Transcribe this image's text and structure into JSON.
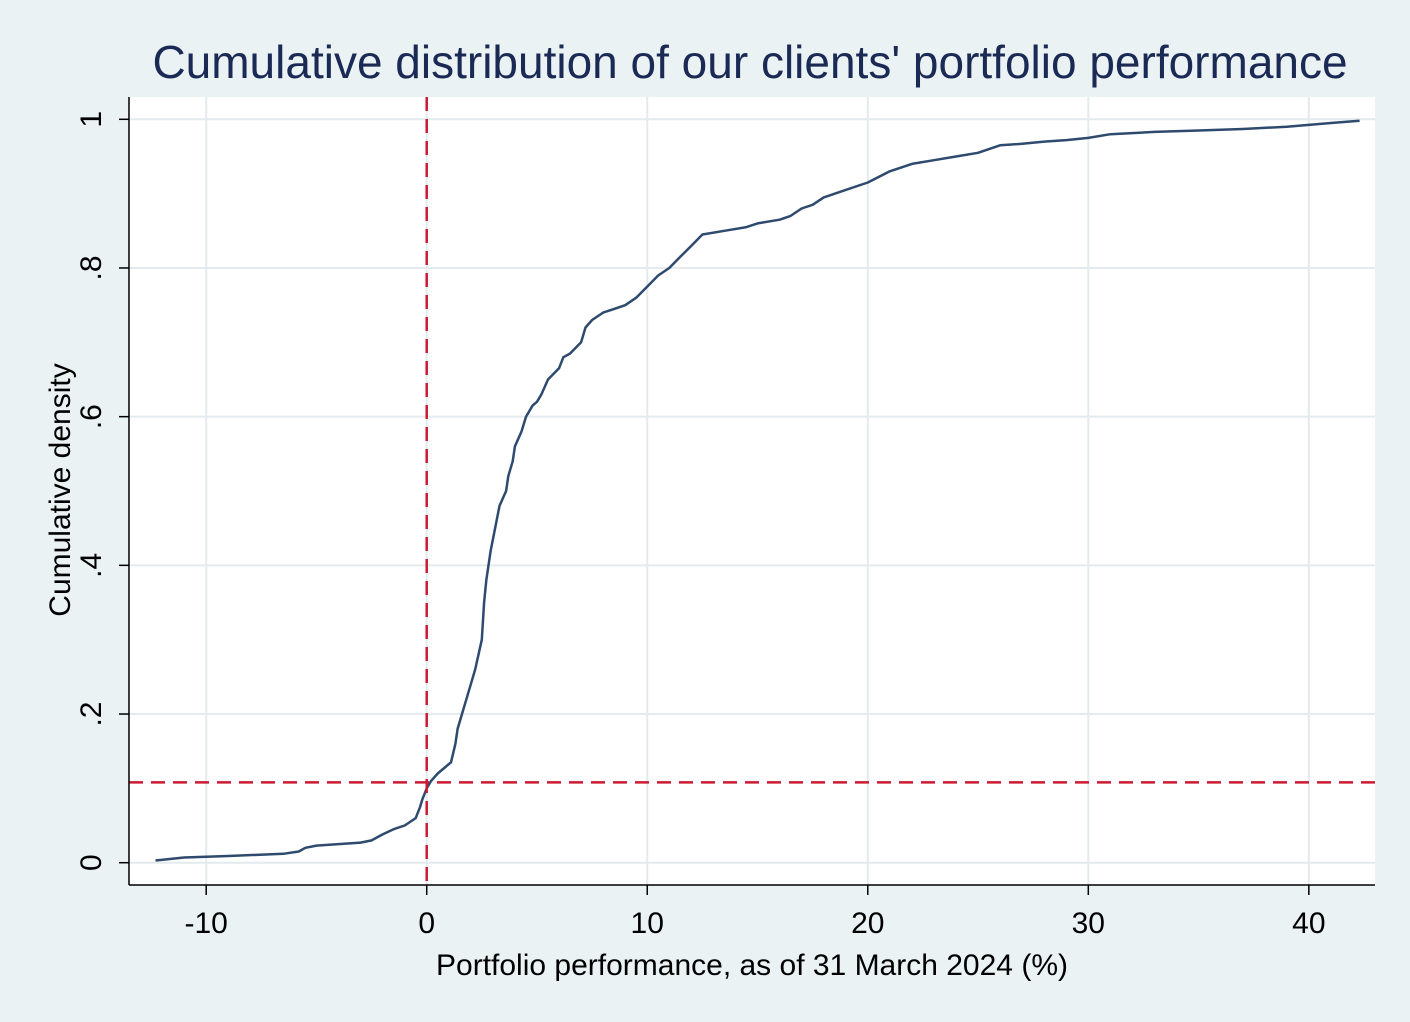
{
  "chart_data": {
    "type": "line",
    "title": "Cumulative distribution of our clients' portfolio performance",
    "xlabel": "Portfolio performance, as of 31 March 2024 (%)",
    "ylabel": "Cumulative density",
    "xlim": [
      -13.5,
      43
    ],
    "ylim": [
      -0.03,
      1.03
    ],
    "x_ticks": [
      -10,
      0,
      10,
      20,
      30,
      40
    ],
    "x_tick_labels": [
      "-10",
      "0",
      "10",
      "20",
      "30",
      "40"
    ],
    "y_ticks": [
      0,
      0.2,
      0.4,
      0.6,
      0.8,
      1
    ],
    "y_tick_labels": [
      "0",
      ".2",
      ".4",
      ".6",
      ".8",
      "1"
    ],
    "grid": true,
    "colors": {
      "series": "#2e4a6e",
      "reference": "#cc1a33",
      "grid": "#e3ebee",
      "title": "#1a2a55"
    },
    "reference_lines": [
      {
        "orientation": "vertical",
        "x": 0,
        "style": "dashed"
      },
      {
        "orientation": "horizontal",
        "y": 0.108,
        "style": "dashed"
      }
    ],
    "series": [
      {
        "x": [
          -12.3,
          -11,
          -9,
          -6.5,
          -5.8,
          -5.5,
          -5,
          -3,
          -2.5,
          -2,
          -1.5,
          -1,
          -0.5,
          -0.3,
          -0.2,
          0,
          0.2,
          0.5,
          1.1,
          1.3,
          1.4,
          1.6,
          1.8,
          2,
          2.2,
          2.5,
          2.6,
          2.7,
          2.8,
          2.9,
          3.1,
          3.3,
          3.6,
          3.7,
          3.9,
          4,
          4.3,
          4.5,
          4.8,
          5,
          5.2,
          5.5,
          6,
          6.2,
          6.5,
          7,
          7.2,
          7.5,
          8,
          8.5,
          9,
          9.5,
          10,
          10.5,
          11,
          11.5,
          12,
          12.5,
          13.5,
          14.5,
          15,
          16,
          16.5,
          17,
          17.5,
          18,
          19,
          20,
          21,
          22,
          23,
          24,
          25,
          26,
          27,
          28,
          29,
          30,
          31,
          33,
          35,
          37,
          39,
          41,
          42.3
        ],
        "y": [
          0.003,
          0.007,
          0.009,
          0.012,
          0.015,
          0.02,
          0.023,
          0.027,
          0.03,
          0.038,
          0.045,
          0.05,
          0.06,
          0.075,
          0.085,
          0.1,
          0.11,
          0.12,
          0.135,
          0.16,
          0.18,
          0.2,
          0.22,
          0.24,
          0.26,
          0.3,
          0.35,
          0.38,
          0.4,
          0.42,
          0.45,
          0.48,
          0.5,
          0.52,
          0.54,
          0.56,
          0.58,
          0.6,
          0.615,
          0.62,
          0.63,
          0.65,
          0.665,
          0.68,
          0.685,
          0.7,
          0.72,
          0.73,
          0.74,
          0.745,
          0.75,
          0.76,
          0.775,
          0.79,
          0.8,
          0.815,
          0.83,
          0.845,
          0.85,
          0.855,
          0.86,
          0.865,
          0.87,
          0.88,
          0.885,
          0.895,
          0.905,
          0.915,
          0.93,
          0.94,
          0.945,
          0.95,
          0.955,
          0.965,
          0.967,
          0.97,
          0.972,
          0.975,
          0.98,
          0.983,
          0.985,
          0.987,
          0.99,
          0.995,
          0.998
        ]
      }
    ]
  }
}
